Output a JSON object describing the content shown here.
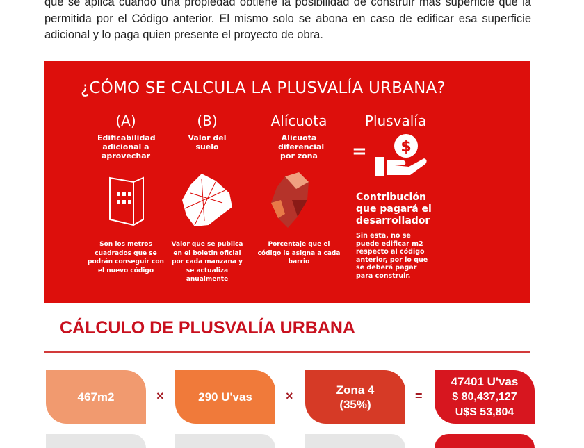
{
  "paragraph": "que se aplica cuando una propiedad obtiene la posibilidad de construir más superficie que la permitida por el Código anterior. El mismo solo se abona en caso de edificar esa superficie adicional y lo paga quien presente el proyecto de obra.",
  "infographic": {
    "title": "¿CÓMO SE CALCULA LA PLUSVALÍA URBANA?",
    "columns": [
      {
        "heading": "(A)",
        "subtitle": "Edificabilidad adicional a aprovechar",
        "icon": "building-icon",
        "description": "Son los metros cuadrados que se podrán conseguir con el nuevo código"
      },
      {
        "heading": "(B)",
        "subtitle": "Valor del suelo",
        "icon": "city-map-icon",
        "description": "Valor que se publica en el boletin oficial por cada manzana y se actualiza anualmente"
      },
      {
        "heading": "Alícuota",
        "subtitle": "Alicuota diferencial por zona",
        "icon": "zone-map-icon",
        "description": "Porcentaje que el código le asigna a cada barrio"
      },
      {
        "heading": "Plusvalía",
        "icon": "hand-money-icon",
        "contribution": "Contribución que pagará el desarrollador",
        "description": "Sin esta, no se puede edificar m2 respecto al código anterior, por lo que se deberá pagar para construir."
      }
    ],
    "equals": "="
  },
  "calc": {
    "title": "CÁLCULO DE PLUSVALÍA URBANA",
    "boxes": [
      {
        "line1": "467m2",
        "color": "#f19a6f"
      },
      {
        "line1": "290 U'vas",
        "color": "#f07a3a"
      },
      {
        "line1": "Zona 4",
        "line2": "(35%)",
        "color": "#d63a26"
      },
      {
        "line1": "47401 U'vas",
        "line2": "$ 80,437,127",
        "line3": "U$S 53,804",
        "color": "#d7161f"
      }
    ],
    "operators": [
      "×",
      "×",
      "="
    ]
  }
}
